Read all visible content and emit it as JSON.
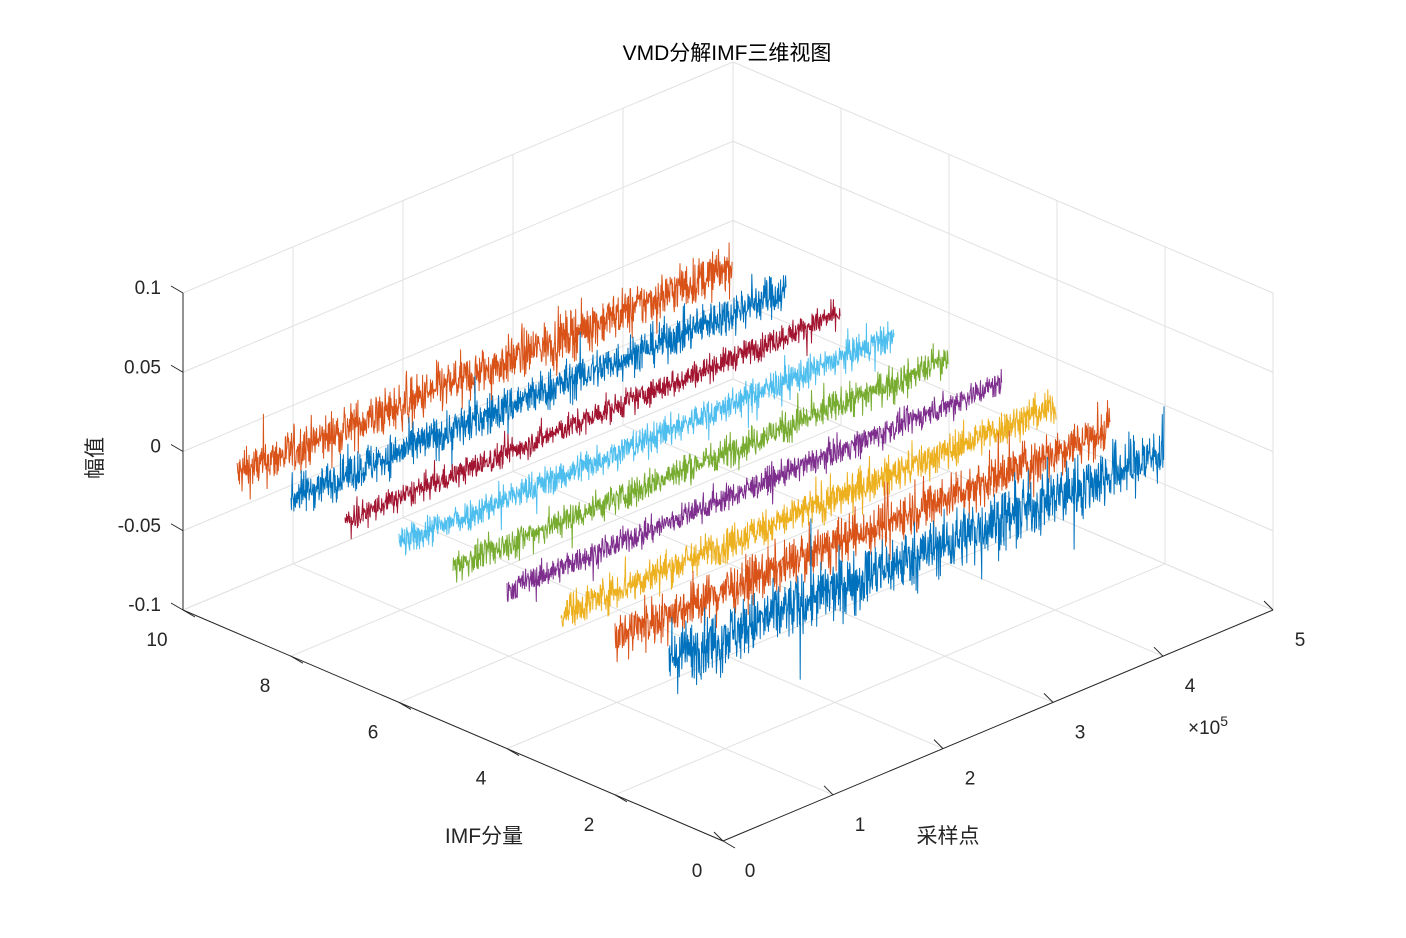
{
  "chart_data": {
    "type": "line",
    "view": "3d",
    "title": "VMD分解IMF三维视图",
    "xlabel": "采样点",
    "ylabel": "IMF分量",
    "zlabel": "幅值",
    "x_exponent_label": "×10",
    "x_exponent_power": "5",
    "xlim": [
      0,
      5
    ],
    "ylim": [
      0,
      10
    ],
    "zlim": [
      -0.1,
      0.1
    ],
    "xticks": [
      "0",
      "1",
      "2",
      "3",
      "4",
      "5"
    ],
    "yticks": [
      "0",
      "2",
      "4",
      "6",
      "8",
      "10"
    ],
    "zticks": [
      "-0.1",
      "-0.05",
      "0",
      "0.05",
      "0.1"
    ],
    "series_x_range": [
      0,
      4.5
    ],
    "grid": true,
    "series": [
      {
        "imf": 1,
        "color": "#0072BD",
        "amplitude": 0.06
      },
      {
        "imf": 2,
        "color": "#D95319",
        "amplitude": 0.045
      },
      {
        "imf": 3,
        "color": "#EDB120",
        "amplitude": 0.035
      },
      {
        "imf": 4,
        "color": "#7E2F8E",
        "amplitude": 0.025
      },
      {
        "imf": 5,
        "color": "#77AC30",
        "amplitude": 0.03
      },
      {
        "imf": 6,
        "color": "#4DBEEE",
        "amplitude": 0.03
      },
      {
        "imf": 7,
        "color": "#A2142F",
        "amplitude": 0.025
      },
      {
        "imf": 8,
        "color": "#0072BD",
        "amplitude": 0.04
      },
      {
        "imf": 9,
        "color": "#D95319",
        "amplitude": 0.045
      }
    ]
  }
}
